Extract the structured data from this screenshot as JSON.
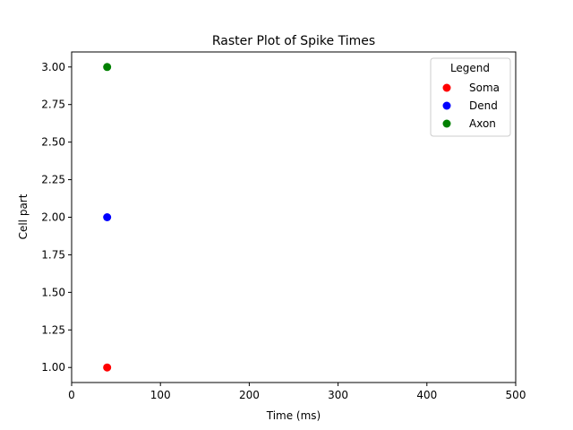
{
  "chart_data": {
    "type": "scatter",
    "title": "Raster Plot of Spike Times",
    "xlabel": "Time (ms)",
    "ylabel": "Cell part",
    "xlim": [
      0,
      500
    ],
    "ylim": [
      0.9,
      3.1
    ],
    "xticks": [
      0,
      100,
      200,
      300,
      400,
      500
    ],
    "xtick_labels": [
      "0",
      "100",
      "200",
      "300",
      "400",
      "500"
    ],
    "yticks": [
      1.0,
      1.25,
      1.5,
      1.75,
      2.0,
      2.25,
      2.5,
      2.75,
      3.0
    ],
    "ytick_labels": [
      "1.00",
      "1.25",
      "1.50",
      "1.75",
      "2.00",
      "2.25",
      "2.50",
      "2.75",
      "3.00"
    ],
    "grid": false,
    "legend": {
      "title": "Legend",
      "placement": "top-right"
    },
    "series": [
      {
        "name": "Soma",
        "color": "#ff0000",
        "points": [
          {
            "x": 40,
            "y": 1
          }
        ]
      },
      {
        "name": "Dend",
        "color": "#0000ff",
        "points": [
          {
            "x": 40,
            "y": 2
          }
        ]
      },
      {
        "name": "Axon",
        "color": "#008000",
        "points": [
          {
            "x": 40,
            "y": 3
          }
        ]
      }
    ]
  }
}
